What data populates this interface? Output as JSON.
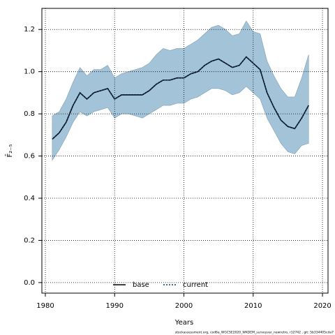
{
  "chart_data": {
    "type": "line",
    "xlabel": "Years",
    "ylabel": "F̄₂₋₅",
    "footer": "stockassessment.org, cod6a_WGCSE2020_WKDEM_surveyvar_newretro, r12742 , git: 5b334405cda7",
    "x": [
      1981,
      1982,
      1983,
      1984,
      1985,
      1986,
      1987,
      1988,
      1989,
      1990,
      1991,
      1992,
      1993,
      1994,
      1995,
      1996,
      1997,
      1998,
      1999,
      2000,
      2001,
      2002,
      2003,
      2004,
      2005,
      2006,
      2007,
      2008,
      2009,
      2010,
      2011,
      2012,
      2013,
      2014,
      2015,
      2016,
      2017,
      2018
    ],
    "series": [
      {
        "name": "base",
        "color": "#000000",
        "dash": false,
        "values": [
          0.68,
          0.71,
          0.76,
          0.84,
          0.9,
          0.87,
          0.9,
          0.91,
          0.92,
          0.87,
          0.89,
          0.89,
          0.89,
          0.89,
          0.91,
          0.94,
          0.96,
          0.96,
          0.97,
          0.97,
          0.99,
          1.0,
          1.03,
          1.05,
          1.06,
          1.04,
          1.02,
          1.03,
          1.07,
          1.04,
          1.01,
          0.9,
          0.83,
          0.77,
          0.74,
          0.73,
          0.78,
          0.84
        ]
      },
      {
        "name": "current",
        "color": "#0b3a66",
        "dash": true,
        "values": [
          0.68,
          0.71,
          0.76,
          0.84,
          0.9,
          0.87,
          0.9,
          0.91,
          0.92,
          0.87,
          0.89,
          0.89,
          0.89,
          0.89,
          0.91,
          0.94,
          0.96,
          0.96,
          0.97,
          0.97,
          0.99,
          1.0,
          1.03,
          1.05,
          1.06,
          1.04,
          1.02,
          1.03,
          1.07,
          1.04,
          1.01,
          0.9,
          0.83,
          0.77,
          0.74,
          0.73,
          0.78,
          0.84
        ]
      }
    ],
    "band": {
      "color": "#a3c4d8",
      "upper": [
        0.79,
        0.81,
        0.87,
        0.95,
        1.02,
        0.98,
        1.01,
        1.01,
        1.03,
        0.97,
        0.99,
        1.0,
        1.01,
        1.02,
        1.04,
        1.08,
        1.11,
        1.1,
        1.11,
        1.11,
        1.13,
        1.15,
        1.18,
        1.21,
        1.22,
        1.2,
        1.17,
        1.18,
        1.24,
        1.19,
        1.18,
        1.05,
        0.98,
        0.92,
        0.88,
        0.88,
        0.97,
        1.08
      ],
      "lower": [
        0.58,
        0.63,
        0.69,
        0.76,
        0.81,
        0.79,
        0.81,
        0.82,
        0.83,
        0.78,
        0.8,
        0.8,
        0.79,
        0.78,
        0.8,
        0.82,
        0.84,
        0.84,
        0.85,
        0.85,
        0.87,
        0.88,
        0.9,
        0.92,
        0.92,
        0.91,
        0.89,
        0.9,
        0.93,
        0.9,
        0.87,
        0.78,
        0.72,
        0.66,
        0.62,
        0.61,
        0.65,
        0.66
      ]
    },
    "xlim": [
      1979.5,
      2020.8
    ],
    "ylim": [
      -0.05,
      1.3
    ],
    "xticks": [
      1980,
      1990,
      2000,
      2010,
      2020
    ],
    "yticks": [
      {
        "value": 0,
        "label": "0.0"
      },
      0.2,
      0.4,
      0.6,
      0.8,
      {
        "value": 1,
        "label": "1.0"
      },
      1.2
    ],
    "grid": true,
    "legend": "bottom"
  }
}
